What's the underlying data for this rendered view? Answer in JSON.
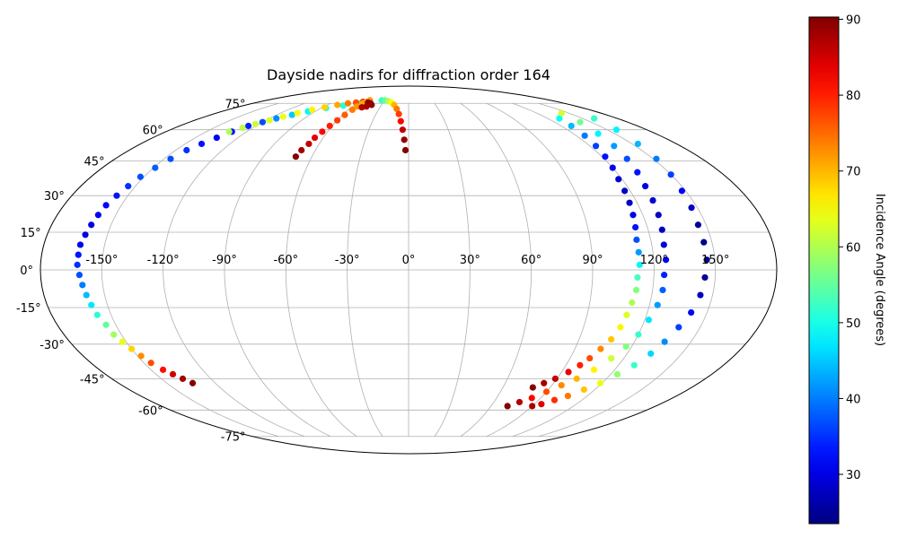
{
  "chart_data": {
    "type": "scatter",
    "projection": "mollweide",
    "title": "Dayside nadirs for diffraction order 164",
    "grid": true,
    "lon_ticks": [
      -150,
      -120,
      -90,
      -60,
      -30,
      0,
      30,
      60,
      90,
      120,
      150
    ],
    "lat_ticks": [
      -75,
      -60,
      -45,
      -30,
      -15,
      0,
      15,
      30,
      45,
      60,
      75
    ],
    "lon_tick_labels": [
      "-150°",
      "-120°",
      "-90°",
      "-60°",
      "-30°",
      "0°",
      "30°",
      "60°",
      "90°",
      "120°",
      "150°"
    ],
    "lat_tick_labels": [
      "-75°",
      "-60°",
      "-45°",
      "-30°",
      "-15°",
      "0°",
      "15°",
      "30°",
      "45°",
      "60°",
      "75°"
    ],
    "colorbar": {
      "label": "Incidence Angle (degrees)",
      "colormap": "jet",
      "range": [
        23.5,
        90.3
      ],
      "ticks": [
        30,
        40,
        50,
        60,
        70,
        80,
        90
      ]
    },
    "series": [
      {
        "lon": [
          -134.0,
          -137.0,
          -140.0,
          -143.0,
          -146.0,
          -148.0,
          -150.0,
          -152.0,
          -154.0,
          -155.0,
          -157.0,
          -158.0,
          -159.0,
          -160.0,
          -161.0,
          -162.0,
          -162.0,
          -162.0,
          -161.0,
          -160.0,
          -159.0,
          -158.0,
          -156.0,
          -154.0,
          -152.0,
          -149.0,
          -146.0,
          -143.0,
          -139.0,
          -135.0,
          -131.0,
          -126.0,
          -120.0,
          -114.0,
          -106.0,
          -97.0,
          -85.0,
          -71.0,
          -56.0
        ],
        "lat": [
          -47.0,
          -45.0,
          -43.0,
          -41.0,
          -38.0,
          -35.0,
          -32.0,
          -29.0,
          -26.0,
          -22.0,
          -18.0,
          -14.0,
          -10.0,
          -6.0,
          -2.0,
          2.0,
          6.0,
          10.0,
          14.0,
          18.0,
          22.0,
          26.0,
          30.0,
          34.0,
          38.0,
          42.0,
          46.0,
          50.0,
          53.0,
          56.0,
          59.0,
          62.0,
          64.0,
          66.0,
          68.0,
          70.0,
          72.0,
          73.5,
          75.0
        ],
        "incidence": [
          90.0,
          88.0,
          85.0,
          81.0,
          77.0,
          73.0,
          68.0,
          64.0,
          59.0,
          55.0,
          51.0,
          47.0,
          44.0,
          40.0,
          37.0,
          35.0,
          33.0,
          31.0,
          30.0,
          30.0,
          31.0,
          32.0,
          33.0,
          35.0,
          37.0,
          38.0,
          37.0,
          35.0,
          33.0,
          31.0,
          32.0,
          34.0,
          37.0,
          41.0,
          45.0,
          48.0,
          50.0,
          51.0,
          52.0
        ]
      },
      {
        "lon": [
          -133.0,
          -128.0,
          -123.0,
          -117.0,
          -111.0,
          -104.0,
          -96.0,
          -88.0,
          -79.0,
          -70.0,
          -62.0,
          -55.0
        ],
        "lat": [
          59.0,
          61.0,
          63.0,
          65.0,
          67.0,
          69.0,
          71.0,
          72.5,
          74.0,
          75.0,
          75.5,
          76.0
        ],
        "incidence": [
          60.0,
          61.0,
          62.0,
          63.0,
          64.0,
          65.0,
          66.0,
          68.0,
          71.0,
          74.0,
          77.0,
          80.0
        ]
      },
      {
        "lon": [
          -70.0,
          -69.0,
          -67.0,
          -66.0,
          -64.0,
          -62.0,
          -60.0,
          -58.0,
          -56.0,
          -55.0,
          -53.0,
          -51.0,
          -49.0
        ],
        "lat": [
          47.0,
          50.0,
          53.0,
          56.0,
          59.0,
          62.0,
          65.0,
          68.0,
          71.0,
          73.0,
          75.0,
          76.0,
          77.0
        ],
        "incidence": [
          90.0,
          88.0,
          86.0,
          84.0,
          82.0,
          80.0,
          78.0,
          76.0,
          74.0,
          72.0,
          71.0,
          71.0,
          72.0
        ]
      },
      {
        "lon": [
          -48.0,
          -44.0,
          -41.0,
          -45.0,
          -49.0
        ],
        "lat": [
          75.5,
          75.0,
          74.0,
          73.0,
          72.5
        ],
        "incidence": [
          89.0,
          90.0,
          89.0,
          88.0,
          87.0
        ]
      },
      {
        "lon": [
          -34.0,
          -30.0,
          -25.0,
          -20.0,
          -16.0,
          -12.0,
          -9.0,
          -6.5,
          -4.5,
          -3.0,
          -2.0
        ],
        "lat": [
          77.0,
          77.0,
          76.5,
          75.5,
          74.0,
          71.5,
          68.5,
          64.5,
          60.0,
          55.0,
          50.0
        ],
        "incidence": [
          52.0,
          55.0,
          60.0,
          65.0,
          70.0,
          74.0,
          78.0,
          82.0,
          86.0,
          89.0,
          90.0
        ]
      },
      {
        "lon": [
          130.0,
          128.0,
          126.0,
          124.0,
          122.0,
          120.0,
          118.0,
          117.0,
          116.0,
          115.0,
          114.0,
          113.0,
          113.0,
          113.0,
          112.0,
          112.0,
          111.0,
          110.0,
          109.0,
          107.0,
          104.0,
          101.0,
          98.0,
          94.0,
          89.0,
          84.0,
          79.0
        ],
        "lat": [
          66.0,
          62.0,
          57.0,
          52.0,
          47.0,
          42.0,
          37.0,
          32.0,
          27.0,
          22.0,
          17.0,
          12.0,
          7.0,
          2.0,
          -3.0,
          -8.0,
          -13.0,
          -18.0,
          -23.0,
          -28.0,
          -32.0,
          -36.0,
          -39.0,
          -42.0,
          -45.0,
          -47.0,
          -49.0
        ],
        "incidence": [
          49.0,
          44.0,
          40.0,
          36.0,
          33.0,
          31.0,
          29.0,
          28.0,
          28.0,
          30.0,
          33.0,
          37.0,
          42.0,
          48.0,
          53.0,
          57.0,
          60.0,
          63.0,
          66.0,
          69.0,
          73.0,
          77.0,
          80.0,
          83.0,
          86.0,
          88.0,
          90.0
        ]
      },
      {
        "lon": [
          143.0,
          141.0,
          138.0,
          136.0,
          134.0,
          132.0,
          130.0,
          129.0,
          128.0,
          127.0,
          126.0,
          126.0,
          125.0,
          125.0,
          124.0,
          122.0,
          120.0,
          117.0,
          113.0,
          108.0,
          102.0,
          96.0,
          90.0,
          84.0,
          78.0,
          72.0
        ],
        "lat": [
          69.0,
          64.0,
          58.0,
          52.0,
          46.0,
          40.0,
          34.0,
          28.0,
          22.0,
          16.0,
          10.0,
          4.0,
          -2.0,
          -8.0,
          -14.0,
          -20.0,
          -26.0,
          -31.0,
          -36.0,
          -41.0,
          -45.0,
          -48.0,
          -51.0,
          -54.0,
          -56.0,
          -58.0
        ],
        "incidence": [
          62.0,
          56.0,
          48.0,
          42.0,
          37.0,
          33.0,
          30.0,
          29.0,
          28.0,
          28.0,
          29.0,
          31.0,
          34.0,
          38.0,
          42.0,
          47.0,
          52.0,
          57.0,
          62.0,
          66.0,
          70.0,
          73.0,
          77.0,
          82.0,
          87.0,
          90.0
        ]
      },
      {
        "lon": [
          160.0,
          157.0,
          154.0,
          152.0,
          150.0,
          148.0,
          147.0,
          146.0,
          146.0,
          146.0,
          145.0,
          144.0,
          142.0,
          139.0,
          136.0,
          133.0,
          129.0,
          124.0,
          119.0,
          113.0,
          107.0,
          101.0,
          95.0,
          90.0
        ],
        "lat": [
          66.0,
          60.0,
          53.0,
          46.0,
          39.0,
          32.0,
          25.0,
          18.0,
          11.0,
          4.0,
          -3.0,
          -10.0,
          -17.0,
          -23.0,
          -29.0,
          -34.0,
          -39.0,
          -43.0,
          -47.0,
          -50.0,
          -53.0,
          -55.0,
          -57.0,
          -58.0
        ],
        "incidence": [
          52.0,
          48.0,
          44.0,
          40.0,
          36.0,
          32.0,
          28.0,
          25.0,
          24.0,
          24.0,
          25.0,
          28.0,
          32.0,
          36.0,
          41.0,
          46.0,
          52.0,
          58.0,
          64.0,
          69.0,
          74.0,
          79.0,
          84.0,
          88.0
        ]
      }
    ]
  }
}
